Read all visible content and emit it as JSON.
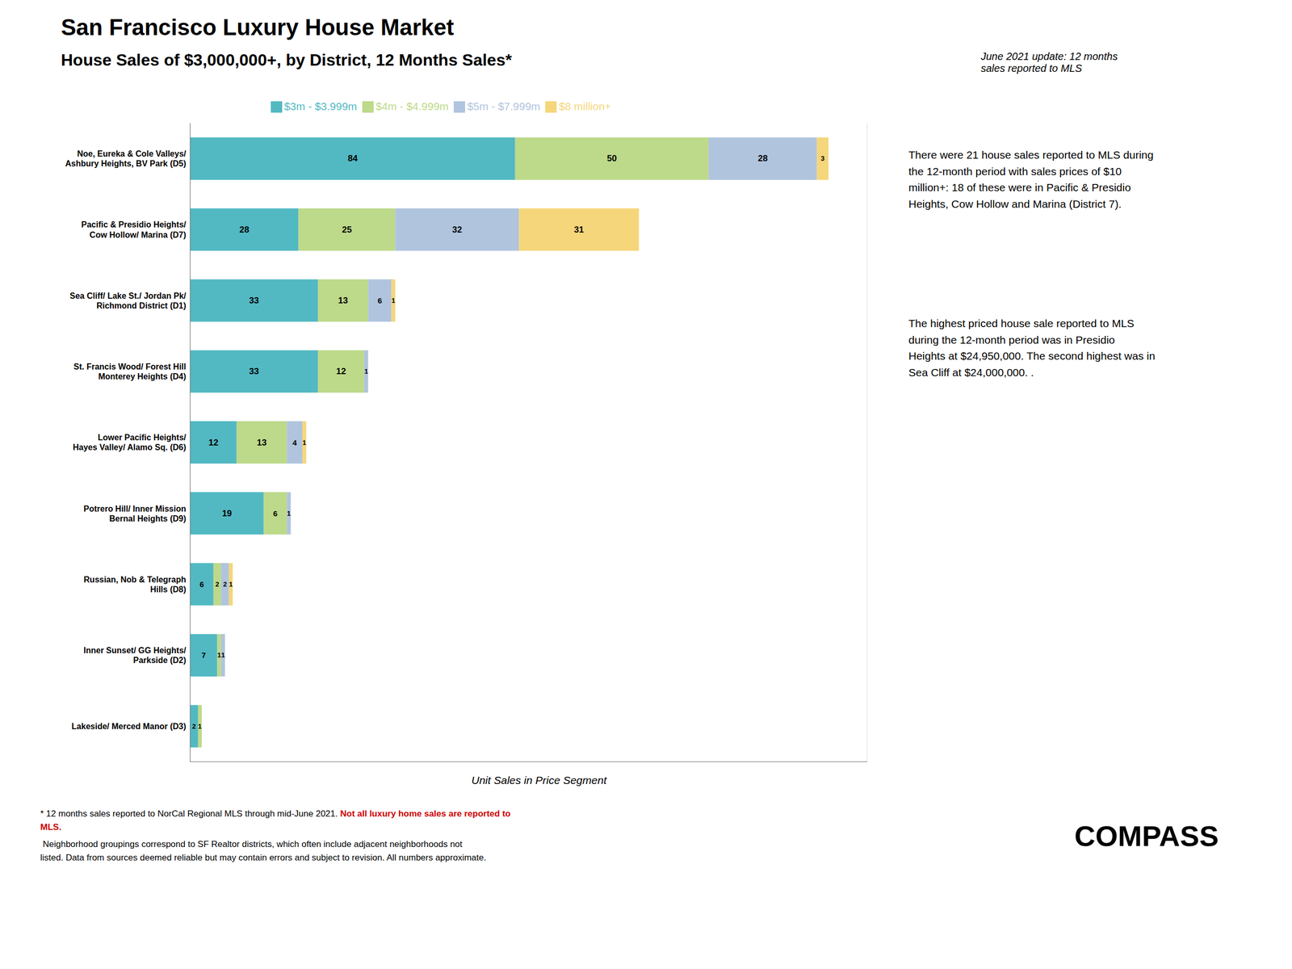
{
  "chart_data": {
    "type": "bar",
    "orientation": "horizontal",
    "stacked": true,
    "data_labels": true,
    "grid": true,
    "legend": "top",
    "tick_labels": "y",
    "title": "San Francisco Luxury House Market",
    "subtitle": "House Sales of $3,000,000+, by District, 12 Months Sales*",
    "xlabel": "Unit Sales in Price Segment",
    "categories": [
      "Noe, Eureka & Cole Valleys/\nAshbury Heights, BV Park (D5)",
      "Pacific & Presidio Heights/\nCow Hollow/ Marina (D7)",
      "Sea Cliff/ Lake St./ Jordan Pk/\nRichmond District (D1)",
      "St. Francis Wood/ Forest Hill\nMonterey Heights (D4)",
      "Lower Pacific Heights/\nHayes Valley/ Alamo Sq. (D6)",
      "Potrero Hill/ Inner Mission\nBernal Heights (D9)",
      "Russian, Nob & Telegraph\nHills (D8)",
      "Inner Sunset/ GG Heights/\nParkside (D2)",
      "Lakeside/ Merced Manor (D3)"
    ],
    "series": [
      {
        "name": "$3m - $3.999m",
        "color": "#52b9c3",
        "values": [
          84,
          28,
          33,
          33,
          12,
          19,
          6,
          7,
          2
        ]
      },
      {
        "name": "$4m - $4.999m",
        "color": "#bdd98a",
        "values": [
          50,
          25,
          13,
          12,
          13,
          6,
          2,
          1,
          1
        ]
      },
      {
        "name": "$5m - $7.999m",
        "color": "#b0c4de",
        "values": [
          28,
          32,
          6,
          1,
          4,
          1,
          2,
          1,
          0
        ]
      },
      {
        "name": "$8 million+",
        "color": "#f5d67a",
        "values": [
          3,
          31,
          1,
          0,
          1,
          0,
          1,
          0,
          0
        ]
      }
    ],
    "xlim": [
      0,
      175
    ],
    "xticks": [
      0,
      25,
      50,
      75,
      100,
      125,
      150,
      175
    ],
    "annotations": [
      {
        "text": "June 2021 update: 12 months\nsales reported to MLS"
      },
      {
        "text": "There were 21 house sales reported to MLS during\nthe 12-month period with sales prices of $10\nmillion+:  18 of these were in Pacific & Presidio\nHeights, Cow Hollow and Marina (District 7)."
      },
      {
        "text": "The highest priced house sale reported to MLS\nduring the 12-month period was in Presidio\nHeights at $24,950,000. The second highest was in\nSea Cliff at $24,000,000. ."
      },
      {
        "text": "COMPASS"
      }
    ],
    "footnotes": [
      {
        "text": "* 12 months sales reported to NorCal Regional MLS through mid-June 2021. "
      },
      {
        "text": "Not all luxury home sales are reported to\nMLS.",
        "color": "#cc0000"
      },
      {
        "text": " Neighborhood groupings correspond to SF Realtor districts, which often include adjacent neighborhoods not\nlisted. Data from sources deemed reliable but may contain errors and subject to revision. All numbers approximate."
      }
    ]
  }
}
